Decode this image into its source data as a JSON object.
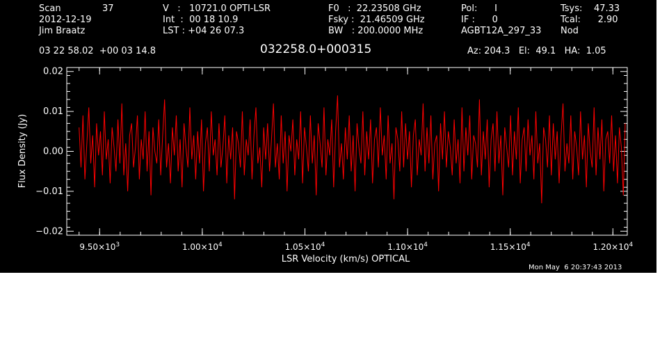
{
  "header": {
    "scan_label": "Scan",
    "scan_value": "37",
    "date": "2012-12-19",
    "observer": "Jim Braatz",
    "v_line": "V   :   10721.0 OPTI-LSR",
    "int_line": "Int  :  00 18 10.9",
    "lst_line": "LST : +04 26 07.3",
    "f0_line": "F0   :  22.23508 GHz",
    "fsky_line": "Fsky :  21.46509 GHz",
    "bw_line": "BW   : 200.0000 MHz",
    "pol_line": "Pol:      I",
    "if_line": "IF :      0",
    "project": "AGBT12A_297_33",
    "tsys_line": "Tsys:    47.33",
    "tcal_line": "Tcal:      2.90",
    "mode": "Nod",
    "coords": "03 22 58.02  +00 03 14.8",
    "source": "032258.0+000315",
    "az_el_ha": "Az: 204.3   El:  49.1   HA:  1.05",
    "timestamp": "Mon May  6 20:37:43 2013"
  },
  "chart_data": {
    "type": "line",
    "xlabel": "LSR Velocity (km/s) OPTICAL",
    "ylabel": "Flux Density (Jy)",
    "xlim": [
      9340,
      12070
    ],
    "ylim": [
      -0.021,
      0.021
    ],
    "x_ticks": [
      {
        "value": 9500,
        "mantissa": "9.50",
        "exponent": "3"
      },
      {
        "value": 10000,
        "mantissa": "1.00",
        "exponent": "4"
      },
      {
        "value": 10500,
        "mantissa": "1.05",
        "exponent": "4"
      },
      {
        "value": 11000,
        "mantissa": "1.10",
        "exponent": "4"
      },
      {
        "value": 11500,
        "mantissa": "1.15",
        "exponent": "4"
      },
      {
        "value": 12000,
        "mantissa": "1.20",
        "exponent": "4"
      }
    ],
    "y_ticks": [
      {
        "value": 0.02,
        "label": "0.02"
      },
      {
        "value": 0.01,
        "label": "0.01"
      },
      {
        "value": 0.0,
        "label": "0.00"
      },
      {
        "value": -0.01,
        "label": "−0.01"
      },
      {
        "value": -0.02,
        "label": "−0.02"
      }
    ],
    "grid": false,
    "series": [
      {
        "color": "#ff0000",
        "x_start": 9400,
        "x_end": 12060,
        "values": [
          0.006,
          -0.004,
          0.009,
          -0.007,
          0.002,
          0.011,
          -0.003,
          0.004,
          -0.009,
          0.007,
          -0.001,
          0.005,
          -0.006,
          0.01,
          -0.002,
          0.003,
          -0.008,
          0.006,
          0.001,
          -0.005,
          0.008,
          -0.003,
          0.012,
          -0.006,
          0.002,
          -0.01,
          0.004,
          0.007,
          -0.004,
          0.001,
          0.009,
          -0.007,
          0.003,
          -0.002,
          0.01,
          -0.005,
          0.005,
          -0.011,
          0.006,
          0.0,
          -0.003,
          0.008,
          -0.006,
          0.004,
          0.013,
          -0.004,
          0.002,
          -0.008,
          0.006,
          -0.001,
          0.009,
          -0.005,
          0.003,
          -0.009,
          0.007,
          0.001,
          -0.004,
          0.011,
          -0.002,
          0.004,
          -0.007,
          0.005,
          -0.003,
          0.008,
          -0.01,
          0.002,
          0.006,
          -0.005,
          0.01,
          -0.001,
          0.003,
          -0.006,
          0.007,
          -0.004,
          0.001,
          0.009,
          -0.008,
          0.004,
          -0.002,
          0.006,
          -0.012,
          0.005,
          0.002,
          -0.004,
          0.01,
          -0.006,
          0.003,
          -0.001,
          0.008,
          -0.007,
          0.004,
          0.011,
          -0.003,
          0.001,
          -0.009,
          0.006,
          -0.002,
          0.007,
          -0.005,
          0.003,
          0.012,
          -0.004,
          0.002,
          -0.007,
          0.009,
          -0.003,
          0.005,
          -0.01,
          0.004,
          0.0,
          0.008,
          -0.006,
          0.003,
          -0.002,
          0.01,
          -0.008,
          0.006,
          0.001,
          -0.005,
          0.009,
          -0.003,
          0.004,
          -0.011,
          0.007,
          0.002,
          -0.004,
          0.011,
          -0.006,
          0.003,
          -0.001,
          0.008,
          -0.009,
          0.005,
          0.014,
          -0.004,
          0.002,
          -0.007,
          0.006,
          -0.002,
          0.009,
          -0.005,
          0.004,
          -0.01,
          0.007,
          0.001,
          -0.003,
          0.01,
          -0.006,
          0.005,
          -0.002,
          0.008,
          -0.008,
          0.003,
          0.006,
          -0.004,
          0.011,
          -0.001,
          0.004,
          -0.007,
          0.009,
          -0.003,
          0.002,
          -0.012,
          0.006,
          0.003,
          -0.005,
          0.01,
          -0.004,
          0.007,
          -0.002,
          0.005,
          -0.009,
          0.004,
          0.008,
          -0.006,
          0.003,
          -0.001,
          0.012,
          -0.005,
          0.006,
          -0.003,
          0.009,
          -0.007,
          0.002,
          0.004,
          -0.01,
          0.007,
          -0.002,
          0.01,
          -0.004,
          0.005,
          0.001,
          -0.006,
          0.008,
          -0.003,
          0.003,
          -0.008,
          0.011,
          -0.005,
          0.006,
          -0.001,
          0.009,
          -0.007,
          0.004,
          0.002,
          -0.004,
          0.013,
          -0.006,
          0.005,
          -0.002,
          0.008,
          -0.009,
          0.003,
          0.007,
          -0.005,
          0.01,
          -0.003,
          0.004,
          -0.011,
          0.006,
          0.001,
          -0.004,
          0.009,
          -0.006,
          0.005,
          -0.002,
          0.011,
          -0.008,
          0.003,
          0.006,
          -0.005,
          0.008,
          -0.001,
          0.004,
          -0.007,
          0.01,
          -0.003,
          0.002,
          -0.013,
          0.006,
          0.003,
          -0.004,
          0.009,
          -0.006,
          0.007,
          -0.002,
          0.005,
          -0.008,
          0.004,
          0.012,
          -0.005,
          0.002,
          -0.003,
          0.009,
          -0.007,
          0.005,
          0.001,
          -0.006,
          0.01,
          -0.002,
          0.004,
          -0.009,
          0.007,
          0.0,
          -0.004,
          0.011,
          -0.006,
          0.006,
          -0.002,
          0.008,
          -0.01,
          0.003,
          0.005,
          -0.003,
          0.009,
          -0.005,
          0.004,
          -0.008,
          0.006,
          0.001,
          -0.011,
          0.007
        ]
      }
    ]
  }
}
